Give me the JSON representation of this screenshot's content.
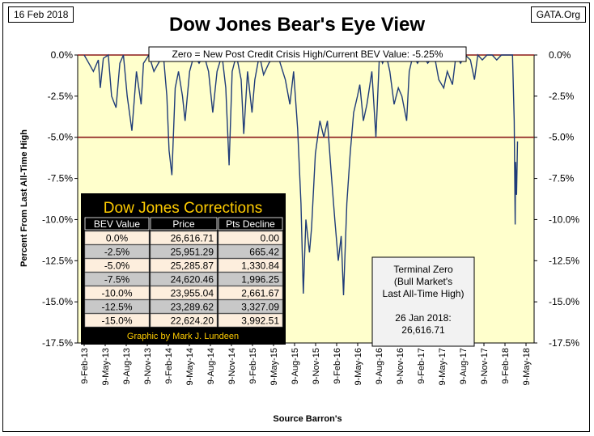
{
  "header": {
    "date": "16 Feb 2018",
    "source_tag": "GATA.Org",
    "title": "Dow Jones Bear's Eye View",
    "subtitle": "Zero = New Post Credit Crisis High/Current BEV Value:  -5.25%"
  },
  "corrections_table": {
    "title": "Dow Jones Corrections",
    "headers": [
      "BEV Value",
      "Price",
      "Pts Decline"
    ],
    "rows": [
      [
        "0.0%",
        "26,616.71",
        "0.00"
      ],
      [
        "-2.5%",
        "25,951.29",
        "665.42"
      ],
      [
        "-5.0%",
        "25,285.87",
        "1,330.84"
      ],
      [
        "-7.5%",
        "24,620.46",
        "1,996.25"
      ],
      [
        "-10.0%",
        "23,955.04",
        "2,661.67"
      ],
      [
        "-12.5%",
        "23,289.62",
        "3,327.09"
      ],
      [
        "-15.0%",
        "22,624.20",
        "3,992.51"
      ]
    ],
    "credit": "Graphic by Mark J. Lundeen"
  },
  "terminal_box": {
    "lines": [
      "Terminal Zero",
      "(Bull Market's",
      "Last All-Time High)",
      "",
      "26 Jan 2018:",
      "26,616.71"
    ]
  },
  "colors": {
    "plot_bg": "#ffffcc",
    "series": "#1f3c78",
    "ref_line": "#8b1a1a",
    "table_bg": "#000000",
    "table_title": "#ffcc00",
    "header_text": "#ffffff",
    "row_light": "#fdeedd",
    "row_dark": "#c8c8c8"
  },
  "chart_data": {
    "type": "line",
    "xlabel": "Source Barron's",
    "ylabel": "Percent From Last All-Time High",
    "ylim": [
      -17.5,
      0
    ],
    "yticks": [
      "0.0%",
      "-2.5%",
      "-5.0%",
      "-7.5%",
      "-10.0%",
      "-12.5%",
      "-15.0%",
      "-17.5%"
    ],
    "ytick_values": [
      0,
      -2.5,
      -5,
      -7.5,
      -10,
      -12.5,
      -15,
      -17.5
    ],
    "xticks": [
      "9-Feb-13",
      "9-May-13",
      "9-Aug-13",
      "9-Nov-13",
      "9-Feb-14",
      "9-May-14",
      "9-Aug-14",
      "9-Nov-14",
      "9-Feb-15",
      "9-May-15",
      "9-Aug-15",
      "9-Nov-15",
      "9-Feb-16",
      "9-May-16",
      "9-Aug-16",
      "9-Nov-16",
      "9-Feb-17",
      "9-May-17",
      "9-Aug-17",
      "9-Nov-17",
      "9-Feb-18",
      "9-May-18"
    ],
    "reference_lines": [
      0,
      -5
    ],
    "grid": false,
    "series": [
      {
        "x": [
          "2013-02-09",
          "2013-03-01",
          "2013-03-20",
          "2013-04-10",
          "2013-04-18",
          "2013-05-01",
          "2013-05-22",
          "2013-06-05",
          "2013-06-24",
          "2013-07-10",
          "2013-07-25",
          "2013-08-10",
          "2013-08-30",
          "2013-09-18",
          "2013-10-08",
          "2013-10-18",
          "2013-11-10",
          "2013-12-01",
          "2013-12-20",
          "2014-01-10",
          "2014-01-25",
          "2014-02-03",
          "2014-02-15",
          "2014-03-01",
          "2014-03-15",
          "2014-04-01",
          "2014-04-12",
          "2014-05-01",
          "2014-05-20",
          "2014-06-10",
          "2014-07-01",
          "2014-07-20",
          "2014-08-07",
          "2014-08-25",
          "2014-09-15",
          "2014-10-01",
          "2014-10-15",
          "2014-10-28",
          "2014-11-15",
          "2014-12-05",
          "2014-12-16",
          "2015-01-01",
          "2015-01-20",
          "2015-02-01",
          "2015-02-20",
          "2015-03-10",
          "2015-04-01",
          "2015-04-25",
          "2015-05-15",
          "2015-06-10",
          "2015-06-29",
          "2015-07-15",
          "2015-08-01",
          "2015-08-15",
          "2015-08-25",
          "2015-09-05",
          "2015-09-20",
          "2015-09-29",
          "2015-10-15",
          "2015-11-03",
          "2015-11-20",
          "2015-12-05",
          "2015-12-20",
          "2016-01-05",
          "2016-01-20",
          "2016-02-01",
          "2016-02-11",
          "2016-02-25",
          "2016-03-10",
          "2016-03-25",
          "2016-04-10",
          "2016-04-20",
          "2016-05-05",
          "2016-05-20",
          "2016-06-10",
          "2016-06-27",
          "2016-07-12",
          "2016-07-25",
          "2016-08-10",
          "2016-08-25",
          "2016-09-12",
          "2016-09-30",
          "2016-10-15",
          "2016-11-04",
          "2016-11-15",
          "2016-12-01",
          "2016-12-20",
          "2017-01-10",
          "2017-02-01",
          "2017-03-01",
          "2017-03-20",
          "2017-04-10",
          "2017-04-25",
          "2017-05-17",
          "2017-06-01",
          "2017-06-20",
          "2017-07-10",
          "2017-08-01",
          "2017-08-18",
          "2017-09-01",
          "2017-09-20",
          "2017-10-10",
          "2017-11-01",
          "2017-11-20",
          "2017-12-10",
          "2018-01-01",
          "2018-01-15",
          "2018-01-26",
          "2018-02-02",
          "2018-02-06",
          "2018-02-08",
          "2018-02-12",
          "2018-02-16"
        ],
        "y": [
          0,
          -0.5,
          -1.0,
          -0.3,
          -2.0,
          -0.2,
          0,
          -2.5,
          -3.2,
          -0.5,
          0,
          -2.5,
          -4.6,
          -1.0,
          -3.0,
          -0.5,
          0,
          -1.0,
          -0.5,
          0,
          -2.5,
          -5.8,
          -7.3,
          -2.0,
          -1.0,
          -2.5,
          -4.0,
          -1.0,
          0,
          -0.5,
          0,
          -1.0,
          -3.5,
          -1.0,
          0,
          -2.0,
          -6.7,
          -1.0,
          0,
          -1.5,
          -4.8,
          -1.0,
          -3.5,
          -1.5,
          0,
          -1.2,
          -0.5,
          0,
          -0.3,
          -1.5,
          -3.0,
          -1.0,
          -4.5,
          -9.0,
          -14.5,
          -10.0,
          -12.0,
          -10.5,
          -6.0,
          -4.0,
          -5.0,
          -4.0,
          -7.0,
          -10.0,
          -12.5,
          -11.0,
          -14.6,
          -9.0,
          -6.0,
          -3.5,
          -2.5,
          -1.8,
          -4.0,
          -3.0,
          -1.0,
          -5.0,
          0,
          -0.5,
          0,
          -1.0,
          -3.0,
          -2.0,
          -2.5,
          -4.0,
          -1.0,
          0,
          -0.5,
          0,
          -0.5,
          0,
          -1.5,
          -2.0,
          -1.0,
          -1.8,
          0,
          -0.5,
          0,
          -0.3,
          -1.5,
          0,
          -0.3,
          0,
          0,
          -0.3,
          0,
          0,
          0,
          0,
          -4.0,
          -10.3,
          -6.5,
          -8.5,
          -5.25
        ]
      }
    ]
  }
}
